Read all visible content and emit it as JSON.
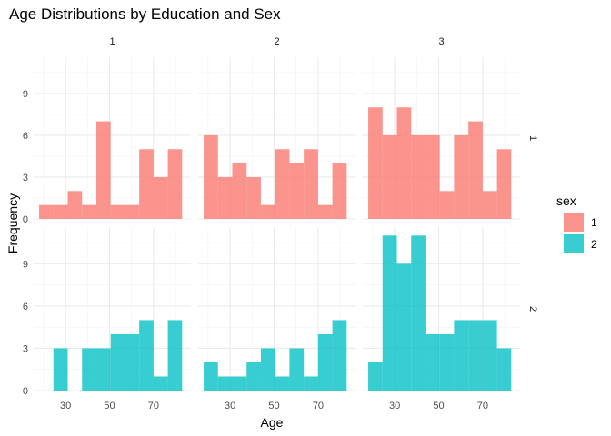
{
  "chart_data": {
    "type": "bar",
    "subtype": "faceted-histogram",
    "title": "Age Distributions by Education and Sex",
    "xlabel": "Age",
    "ylabel": "Frequency",
    "column_facets": [
      "1",
      "2",
      "3"
    ],
    "row_facets": [
      "1",
      "2"
    ],
    "bin_width": 6.5,
    "x_start": 18,
    "xlim": [
      15.5,
      87
    ],
    "ylim": [
      0,
      11.6
    ],
    "x_ticks": [
      30,
      50,
      70
    ],
    "x_tick_labels": [
      "30",
      "50",
      "70"
    ],
    "y_ticks": [
      0,
      3,
      6,
      9
    ],
    "y_tick_labels": [
      "0",
      "3",
      "6",
      "9"
    ],
    "bin_starts": [
      18,
      24.5,
      31,
      37.5,
      44,
      50.5,
      57,
      63.5,
      70,
      76.5
    ],
    "legend": {
      "title": "sex",
      "position": "right",
      "entries": [
        "1",
        "2"
      ]
    },
    "colors": {
      "1": "#F8766D",
      "2": "#00BFC4"
    },
    "bar_alpha": 0.78,
    "grid": true,
    "panels": [
      {
        "edu": "1",
        "sex": "1",
        "counts": [
          1,
          1,
          2,
          1,
          7,
          1,
          1,
          5,
          3,
          5
        ]
      },
      {
        "edu": "2",
        "sex": "1",
        "counts": [
          6,
          3,
          4,
          3,
          1,
          5,
          4,
          5,
          1,
          4
        ]
      },
      {
        "edu": "3",
        "sex": "1",
        "counts": [
          8,
          6,
          8,
          6,
          6,
          2,
          6,
          7,
          2,
          5
        ]
      },
      {
        "edu": "1",
        "sex": "2",
        "counts": [
          0,
          3,
          0,
          3,
          3,
          4,
          4,
          5,
          1,
          5
        ]
      },
      {
        "edu": "2",
        "sex": "2",
        "counts": [
          2,
          1,
          1,
          2,
          3,
          1,
          3,
          1,
          4,
          5
        ]
      },
      {
        "edu": "3",
        "sex": "2",
        "counts": [
          2,
          11,
          9,
          11,
          4,
          4,
          5,
          5,
          5,
          3
        ]
      }
    ]
  }
}
